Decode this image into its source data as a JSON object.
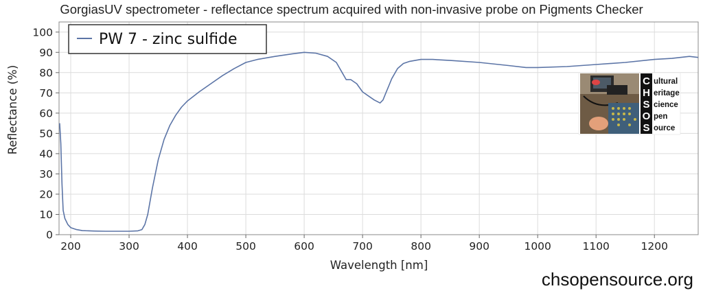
{
  "chart_data": {
    "type": "line",
    "title": "GorgiasUV spectrometer - reflectance spectrum acquired with non-invasive probe on Pigments Checker",
    "xlabel": "Wavelength [nm]",
    "ylabel": "Reflectance (%)",
    "xlim": [
      180,
      1275
    ],
    "ylim": [
      0,
      105
    ],
    "x_ticks": [
      200,
      300,
      400,
      500,
      600,
      700,
      800,
      900,
      1000,
      1100,
      1200
    ],
    "y_ticks": [
      0,
      10,
      20,
      30,
      40,
      50,
      60,
      70,
      80,
      90,
      100
    ],
    "grid": true,
    "legend_position": "top-left",
    "series": [
      {
        "name": "PW 7 - zinc sulfide",
        "color": "#5b74a6",
        "x": [
          181,
          183,
          185,
          187,
          190,
          195,
          200,
          210,
          220,
          240,
          260,
          280,
          300,
          315,
          322,
          327,
          332,
          340,
          350,
          360,
          370,
          380,
          390,
          400,
          420,
          440,
          460,
          480,
          500,
          520,
          550,
          580,
          600,
          620,
          640,
          655,
          665,
          672,
          680,
          690,
          700,
          710,
          720,
          730,
          735,
          740,
          745,
          750,
          760,
          770,
          780,
          790,
          800,
          820,
          850,
          900,
          950,
          980,
          1000,
          1050,
          1100,
          1150,
          1200,
          1230,
          1260,
          1275
        ],
        "y": [
          55,
          45,
          25,
          12,
          8,
          5,
          3.5,
          2.5,
          2,
          1.8,
          1.7,
          1.7,
          1.7,
          1.9,
          2.5,
          5,
          10,
          23,
          37,
          47,
          54,
          59,
          63,
          66,
          70.5,
          74.5,
          78.5,
          82,
          85,
          86.5,
          88,
          89.3,
          90,
          89.6,
          88,
          85,
          80,
          76.5,
          76.5,
          74.5,
          70.5,
          68.5,
          66.5,
          65,
          66.5,
          70,
          73.5,
          77,
          82,
          84.5,
          85.5,
          86,
          86.5,
          86.5,
          86,
          85,
          83.5,
          82.5,
          82.5,
          83,
          84,
          85,
          86.5,
          87,
          88,
          87.5
        ]
      }
    ]
  },
  "logo": {
    "letters": [
      "C",
      "H",
      "S",
      "O",
      "S"
    ],
    "words": [
      "ultural",
      "eritage",
      "cience",
      "pen",
      "ource"
    ]
  },
  "website": "chsopensource.org"
}
